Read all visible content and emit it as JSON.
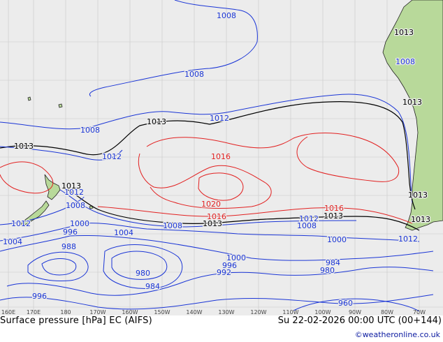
{
  "map": {
    "colors": {
      "ocean": "#ececec",
      "land": "#b8d99a",
      "grid": "#c8c8c8",
      "coast": "#222222",
      "low": "#1a35d6",
      "mid": "#000000",
      "high": "#e22020"
    },
    "isobar_labels": [
      {
        "text": "1008",
        "cls": "low"
      },
      {
        "text": "1008",
        "cls": "low"
      },
      {
        "text": "1008",
        "cls": "low"
      },
      {
        "text": "1012",
        "cls": "low"
      },
      {
        "text": "1012",
        "cls": "low"
      },
      {
        "text": "1013",
        "cls": "mid"
      },
      {
        "text": "1013",
        "cls": "mid"
      },
      {
        "text": "1016",
        "cls": "high"
      },
      {
        "text": "1020",
        "cls": "high"
      },
      {
        "text": "1016",
        "cls": "high"
      },
      {
        "text": "1016",
        "cls": "high"
      },
      {
        "text": "1012",
        "cls": "low"
      },
      {
        "text": "1013",
        "cls": "mid"
      },
      {
        "text": "1013",
        "cls": "mid"
      },
      {
        "text": "1012",
        "cls": "low"
      },
      {
        "text": "1008",
        "cls": "low"
      },
      {
        "text": "1008",
        "cls": "low"
      },
      {
        "text": "1008",
        "cls": "low"
      },
      {
        "text": "1012",
        "cls": "low"
      },
      {
        "text": "1004",
        "cls": "low"
      },
      {
        "text": "1000",
        "cls": "low"
      },
      {
        "text": "996",
        "cls": "low"
      },
      {
        "text": "988",
        "cls": "low"
      },
      {
        "text": "1004",
        "cls": "low"
      },
      {
        "text": "980",
        "cls": "low"
      },
      {
        "text": "984",
        "cls": "low"
      },
      {
        "text": "996",
        "cls": "low"
      },
      {
        "text": "992",
        "cls": "low"
      },
      {
        "text": "1000",
        "cls": "low"
      },
      {
        "text": "1000",
        "cls": "low"
      },
      {
        "text": "984",
        "cls": "low"
      },
      {
        "text": "980",
        "cls": "low"
      },
      {
        "text": "960",
        "cls": "low"
      },
      {
        "text": "996",
        "cls": "low"
      },
      {
        "text": "1013",
        "cls": "mid"
      },
      {
        "text": "1013",
        "cls": "mid"
      },
      {
        "text": "1013",
        "cls": "mid"
      },
      {
        "text": "1013",
        "cls": "mid"
      },
      {
        "text": "1008",
        "cls": "low"
      },
      {
        "text": "1012",
        "cls": "low"
      },
      {
        "text": "1013",
        "cls": "mid"
      }
    ],
    "lon_ticks": [
      "160E",
      "170E",
      "180",
      "170W",
      "160W",
      "150W",
      "140W",
      "130W",
      "120W",
      "110W",
      "100W",
      "90W",
      "80W",
      "70W"
    ]
  },
  "footer": {
    "left": "Surface pressure [hPa] EC (AIFS)",
    "right": "Su 22-02-2026 00:00 UTC (00+144)",
    "credit": "©weatheronline.co.uk"
  }
}
